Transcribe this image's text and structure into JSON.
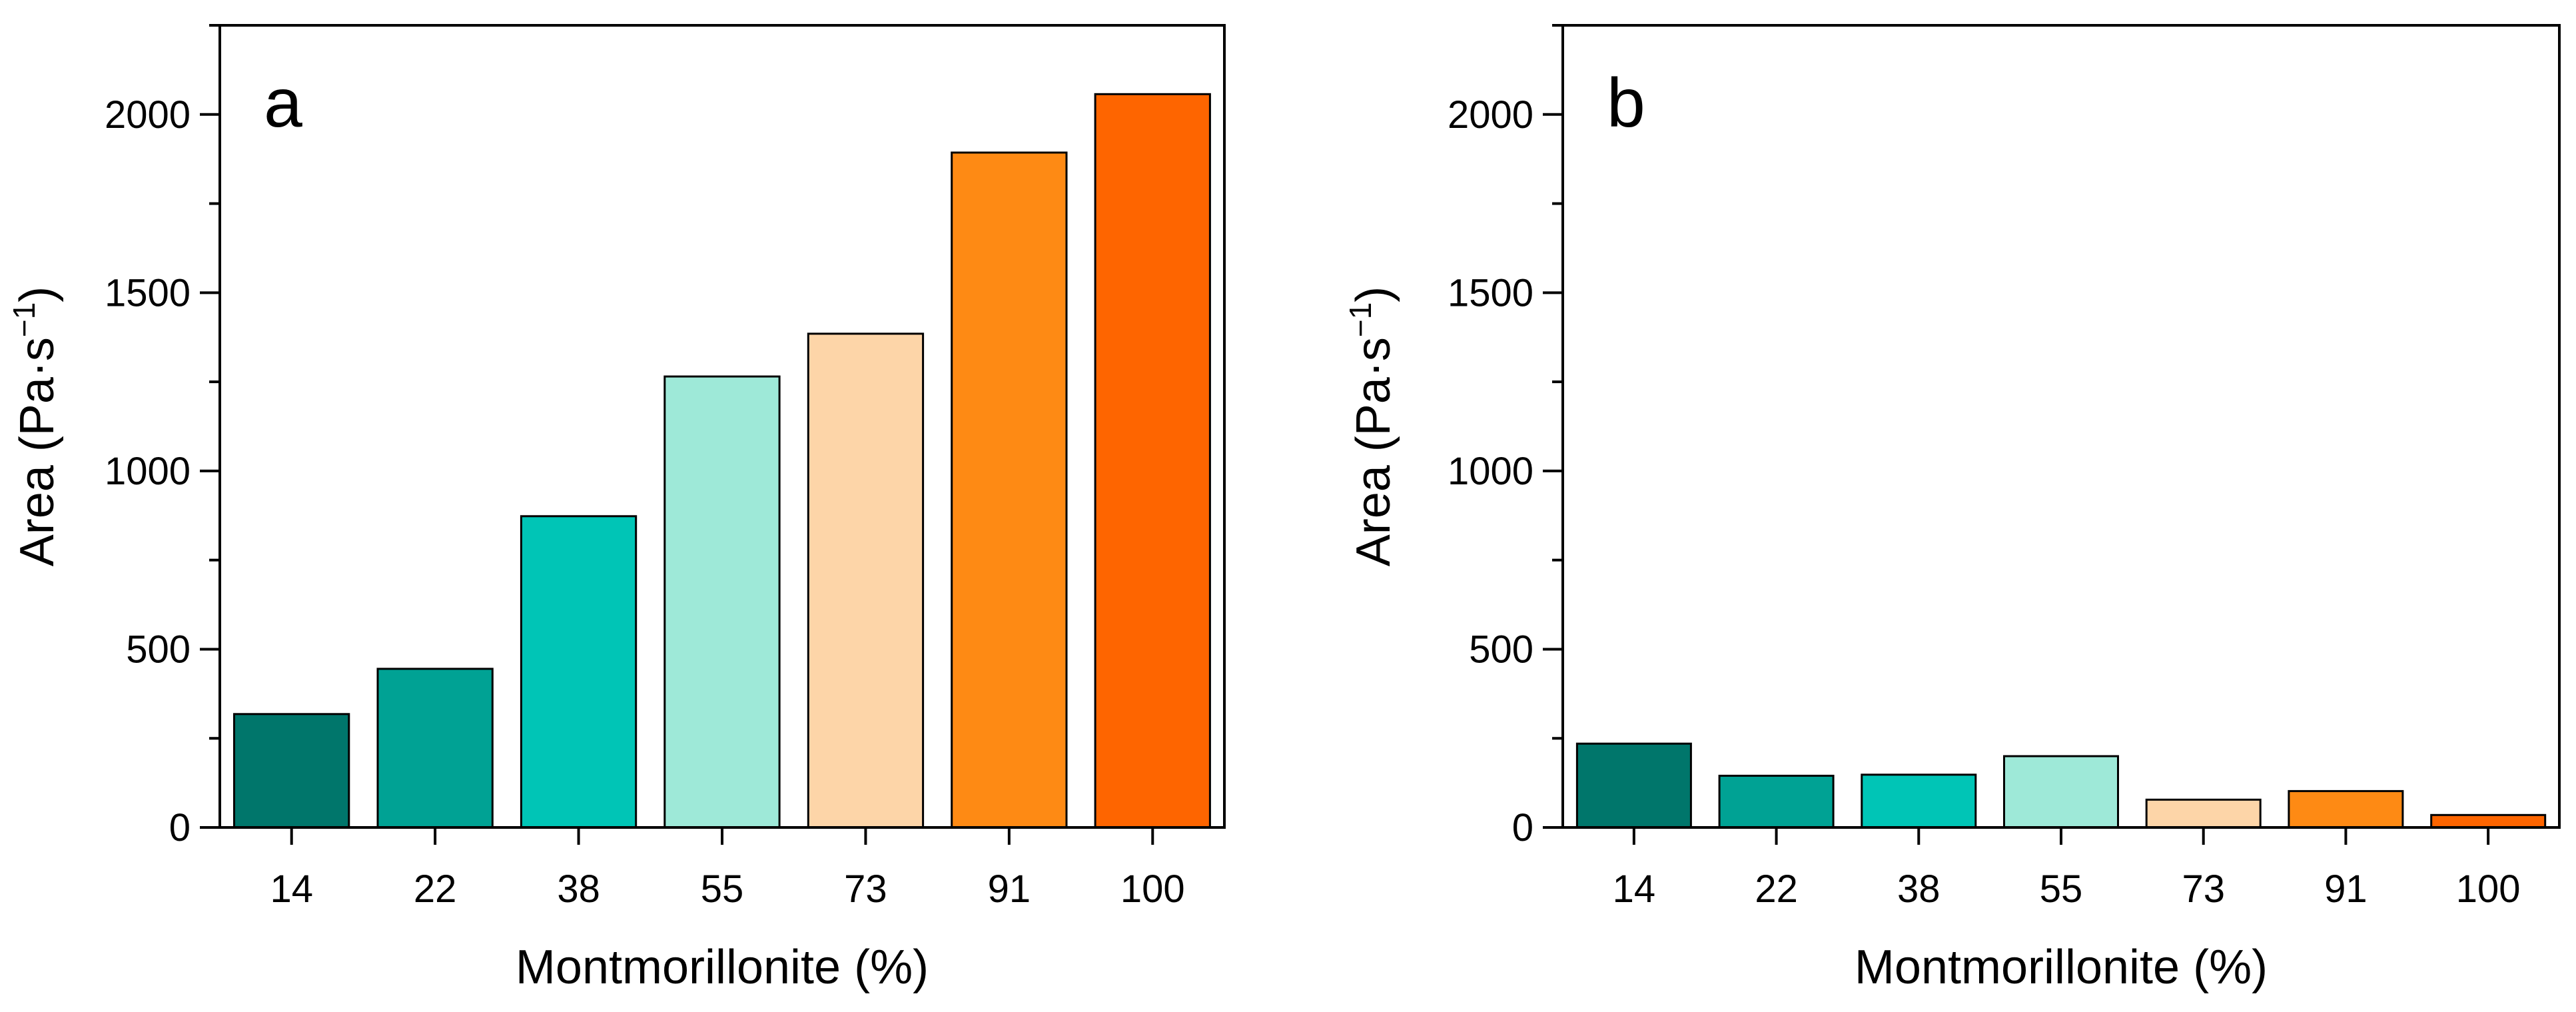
{
  "chart_data": [
    {
      "type": "bar",
      "panel_label": "a",
      "categories": [
        "14",
        "22",
        "38",
        "55",
        "73",
        "91",
        "100"
      ],
      "values": [
        318,
        445,
        873,
        1265,
        1385,
        1893,
        2057
      ],
      "colors": [
        "#00766B",
        "#00A294",
        "#00C5B6",
        "#9EE9D8",
        "#FDD5A8",
        "#FE8A14",
        "#FE6500"
      ],
      "xlabel": "Montmorillonite (%)",
      "ylabel": "Area (Pa·s",
      "ylabel_superscript": "−1",
      "ylabel_suffix": ")",
      "ylim": [
        0,
        2250
      ],
      "yticks": [
        0,
        500,
        1000,
        1500,
        2000
      ],
      "grid": false,
      "legend": "none"
    },
    {
      "type": "bar",
      "panel_label": "b",
      "categories": [
        "14",
        "22",
        "38",
        "55",
        "73",
        "91",
        "100"
      ],
      "values": [
        235,
        145,
        148,
        200,
        78,
        102,
        35
      ],
      "colors": [
        "#00766B",
        "#00A294",
        "#00C5B6",
        "#9EE9D8",
        "#FDD5A8",
        "#FE8A14",
        "#FE6500"
      ],
      "xlabel": "Montmorillonite (%)",
      "ylabel": "Area (Pa·s",
      "ylabel_superscript": "−1",
      "ylabel_suffix": ")",
      "ylim": [
        0,
        2250
      ],
      "yticks": [
        0,
        500,
        1000,
        1500,
        2000
      ],
      "grid": false,
      "legend": "none"
    }
  ]
}
